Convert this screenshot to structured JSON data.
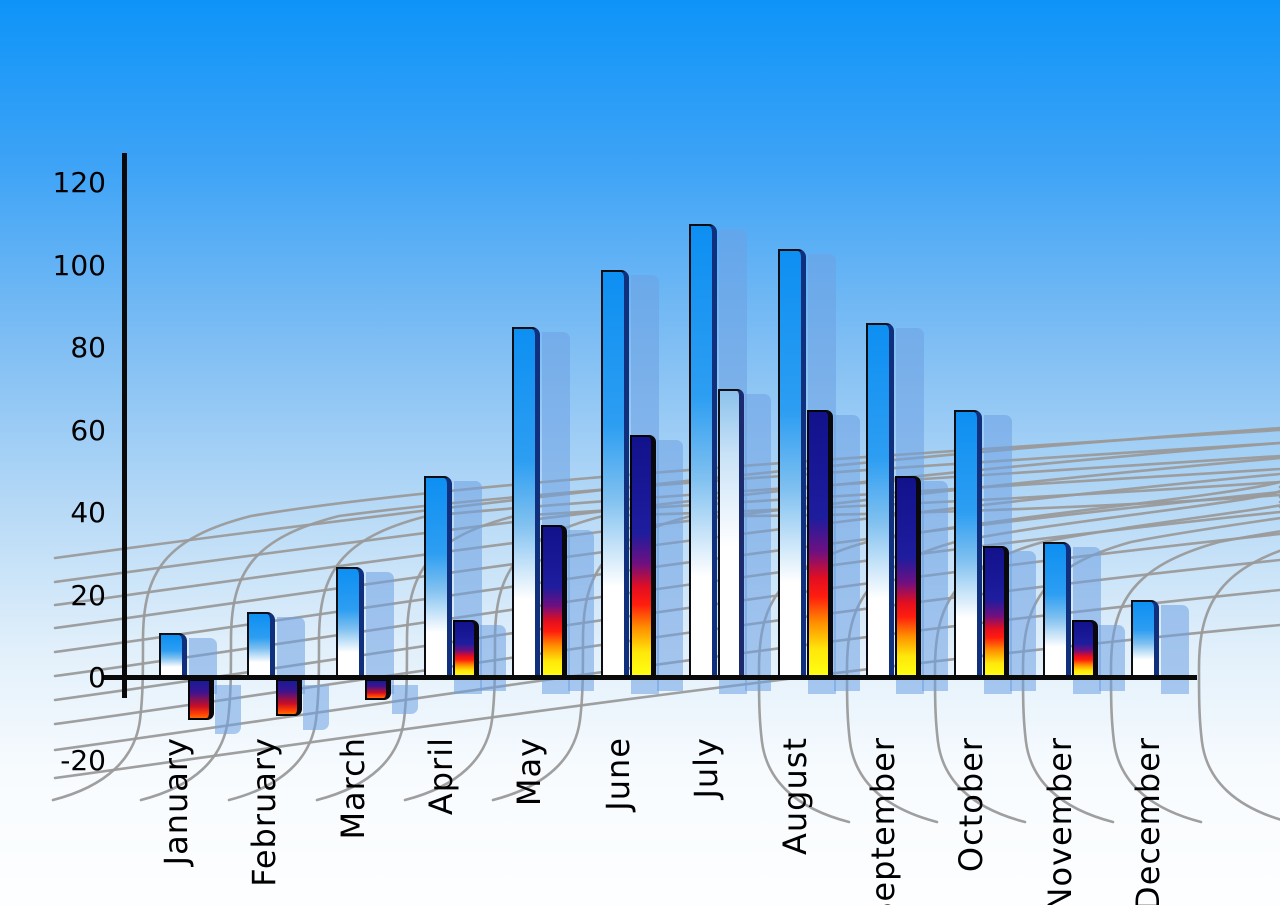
{
  "chart_data": {
    "type": "bar",
    "title": "",
    "categories": [
      "January",
      "February",
      "March",
      "April",
      "May",
      "June",
      "July",
      "August",
      "September",
      "October",
      "November",
      "December"
    ],
    "series": [
      {
        "name": "primary-blue-bars",
        "values": [
          11,
          16,
          27,
          49,
          85,
          99,
          110,
          104,
          86,
          65,
          33,
          19
        ]
      },
      {
        "name": "secondary-accent-bars",
        "values": [
          -10,
          -9,
          -5,
          14,
          37,
          59,
          70,
          65,
          49,
          32,
          14,
          null
        ],
        "bar_styles": [
          "negative",
          "negative",
          "negative",
          "fire",
          "fire",
          "fire",
          "light",
          "fire",
          "fire",
          "fire",
          "fire",
          null
        ]
      }
    ],
    "y_axis": {
      "ticks": [
        120,
        100,
        80,
        60,
        40,
        20,
        0,
        -20
      ],
      "min": -20,
      "max": 120
    },
    "x_axis": {
      "label_rotation_deg": -90
    },
    "legend": "none",
    "grid": "gray perspective dome lattice backdrop",
    "background": "blue sky gradient fading to white"
  },
  "colors": {
    "sky_top": "#0D94F9",
    "sky_bottom": "#FDFEFF",
    "bar_blue_top": "#0D8FF2",
    "bar_blue_bottom": "#FFFFFF",
    "bar_side_edge": "#10307E",
    "fire_navy": "#12128C",
    "fire_red": "#E30E20",
    "fire_yellow": "#FFFF12",
    "shadow_blue": "rgba(110,160,225,0.55)",
    "grid_line": "#9A9A9A",
    "axis_line": "#0A0A0A",
    "label_text": "#000000"
  }
}
